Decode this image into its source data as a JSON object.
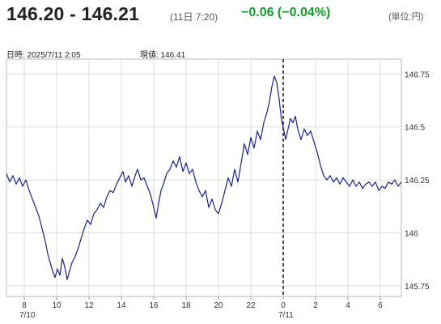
{
  "header": {
    "price": "146.20 - 146.21",
    "time": "(11日 7:20)",
    "change": "−0.06 (−0.04%)",
    "unit": "(単位:円)",
    "change_color": "#169b2b"
  },
  "info": {
    "datetime": "日時: 2025/7/11  2:05",
    "current": "現値: 146.41"
  },
  "chart_data": {
    "type": "line",
    "title": "",
    "xlabel": "",
    "ylabel": "",
    "line_color": "#1a237e",
    "grid": true,
    "ylim": [
      145.7,
      146.82
    ],
    "xlim": [
      6.9,
      31.3
    ],
    "y_ticks": [
      {
        "value": 145.75,
        "label": "145.75"
      },
      {
        "value": 146,
        "label": "146"
      },
      {
        "value": 146.25,
        "label": "146.25"
      },
      {
        "value": 146.5,
        "label": "146.5"
      },
      {
        "value": 146.75,
        "label": "146.75"
      }
    ],
    "x_ticks": [
      {
        "hour": 8,
        "label": "8",
        "sublabel": "7/10"
      },
      {
        "hour": 10,
        "label": "10",
        "sublabel": ""
      },
      {
        "hour": 12,
        "label": "12",
        "sublabel": ""
      },
      {
        "hour": 14,
        "label": "14",
        "sublabel": ""
      },
      {
        "hour": 16,
        "label": "16",
        "sublabel": ""
      },
      {
        "hour": 18,
        "label": "18",
        "sublabel": ""
      },
      {
        "hour": 20,
        "label": "20",
        "sublabel": ""
      },
      {
        "hour": 22,
        "label": "22",
        "sublabel": ""
      },
      {
        "hour": 24,
        "label": "0",
        "sublabel": "7/11"
      },
      {
        "hour": 26,
        "label": "2",
        "sublabel": ""
      },
      {
        "hour": 28,
        "label": "4",
        "sublabel": ""
      },
      {
        "hour": 30,
        "label": "6",
        "sublabel": ""
      }
    ],
    "day_divider_hour": 24,
    "series": [
      {
        "points": [
          [
            6.9,
            146.28
          ],
          [
            7.1,
            146.24
          ],
          [
            7.3,
            146.27
          ],
          [
            7.5,
            146.23
          ],
          [
            7.7,
            146.26
          ],
          [
            7.9,
            146.22
          ],
          [
            8.1,
            146.25
          ],
          [
            8.3,
            146.2
          ],
          [
            8.5,
            146.16
          ],
          [
            8.7,
            146.12
          ],
          [
            8.9,
            146.08
          ],
          [
            9.1,
            146.02
          ],
          [
            9.3,
            145.96
          ],
          [
            9.45,
            145.9
          ],
          [
            9.6,
            145.86
          ],
          [
            9.75,
            145.82
          ],
          [
            9.9,
            145.79
          ],
          [
            10.05,
            145.83
          ],
          [
            10.2,
            145.8
          ],
          [
            10.35,
            145.88
          ],
          [
            10.5,
            145.84
          ],
          [
            10.65,
            145.78
          ],
          [
            10.8,
            145.82
          ],
          [
            10.95,
            145.86
          ],
          [
            11.1,
            145.88
          ],
          [
            11.3,
            145.92
          ],
          [
            11.5,
            145.97
          ],
          [
            11.7,
            146.02
          ],
          [
            11.9,
            146.06
          ],
          [
            12.1,
            146.04
          ],
          [
            12.3,
            146.09
          ],
          [
            12.5,
            146.11
          ],
          [
            12.7,
            146.14
          ],
          [
            12.9,
            146.12
          ],
          [
            13.1,
            146.17
          ],
          [
            13.3,
            146.2
          ],
          [
            13.5,
            146.19
          ],
          [
            13.7,
            146.23
          ],
          [
            13.9,
            146.26
          ],
          [
            14.1,
            146.29
          ],
          [
            14.25,
            146.24
          ],
          [
            14.45,
            146.27
          ],
          [
            14.65,
            146.22
          ],
          [
            14.85,
            146.27
          ],
          [
            15.0,
            146.3
          ],
          [
            15.2,
            146.25
          ],
          [
            15.4,
            146.26
          ],
          [
            15.6,
            146.22
          ],
          [
            15.8,
            146.18
          ],
          [
            16.0,
            146.12
          ],
          [
            16.15,
            146.07
          ],
          [
            16.3,
            146.14
          ],
          [
            16.45,
            146.2
          ],
          [
            16.6,
            146.23
          ],
          [
            16.8,
            146.28
          ],
          [
            17.0,
            146.3
          ],
          [
            17.2,
            146.34
          ],
          [
            17.4,
            146.31
          ],
          [
            17.6,
            146.36
          ],
          [
            17.8,
            146.29
          ],
          [
            18.0,
            146.33
          ],
          [
            18.2,
            146.28
          ],
          [
            18.4,
            146.3
          ],
          [
            18.6,
            146.24
          ],
          [
            18.8,
            146.2
          ],
          [
            19.0,
            146.17
          ],
          [
            19.2,
            146.2
          ],
          [
            19.4,
            146.12
          ],
          [
            19.6,
            146.16
          ],
          [
            19.8,
            146.11
          ],
          [
            20.0,
            146.09
          ],
          [
            20.2,
            146.14
          ],
          [
            20.4,
            146.2
          ],
          [
            20.6,
            146.26
          ],
          [
            20.8,
            146.22
          ],
          [
            21.0,
            146.3
          ],
          [
            21.2,
            146.24
          ],
          [
            21.4,
            146.33
          ],
          [
            21.6,
            146.42
          ],
          [
            21.8,
            146.37
          ],
          [
            22.0,
            146.45
          ],
          [
            22.2,
            146.4
          ],
          [
            22.4,
            146.48
          ],
          [
            22.6,
            146.44
          ],
          [
            22.8,
            146.52
          ],
          [
            23.0,
            146.57
          ],
          [
            23.15,
            146.62
          ],
          [
            23.3,
            146.69
          ],
          [
            23.45,
            146.74
          ],
          [
            23.6,
            146.71
          ],
          [
            23.75,
            146.63
          ],
          [
            23.9,
            146.53
          ],
          [
            24.0,
            146.5
          ],
          [
            24.15,
            146.44
          ],
          [
            24.3,
            146.49
          ],
          [
            24.45,
            146.54
          ],
          [
            24.6,
            146.52
          ],
          [
            24.75,
            146.55
          ],
          [
            24.9,
            146.49
          ],
          [
            25.1,
            146.44
          ],
          [
            25.3,
            146.49
          ],
          [
            25.5,
            146.46
          ],
          [
            25.7,
            146.48
          ],
          [
            25.9,
            146.43
          ],
          [
            26.1,
            146.38
          ],
          [
            26.3,
            146.32
          ],
          [
            26.5,
            146.27
          ],
          [
            26.7,
            146.25
          ],
          [
            26.9,
            146.27
          ],
          [
            27.1,
            146.24
          ],
          [
            27.3,
            146.26
          ],
          [
            27.5,
            146.23
          ],
          [
            27.7,
            146.26
          ],
          [
            27.9,
            146.24
          ],
          [
            28.1,
            146.22
          ],
          [
            28.3,
            146.25
          ],
          [
            28.5,
            146.22
          ],
          [
            28.7,
            146.24
          ],
          [
            28.9,
            146.21
          ],
          [
            29.1,
            146.23
          ],
          [
            29.3,
            146.24
          ],
          [
            29.5,
            146.22
          ],
          [
            29.7,
            146.24
          ],
          [
            29.9,
            146.2
          ],
          [
            30.1,
            146.22
          ],
          [
            30.3,
            146.21
          ],
          [
            30.5,
            146.24
          ],
          [
            30.7,
            146.23
          ],
          [
            30.9,
            146.25
          ],
          [
            31.1,
            146.22
          ],
          [
            31.3,
            146.24
          ]
        ]
      }
    ]
  }
}
